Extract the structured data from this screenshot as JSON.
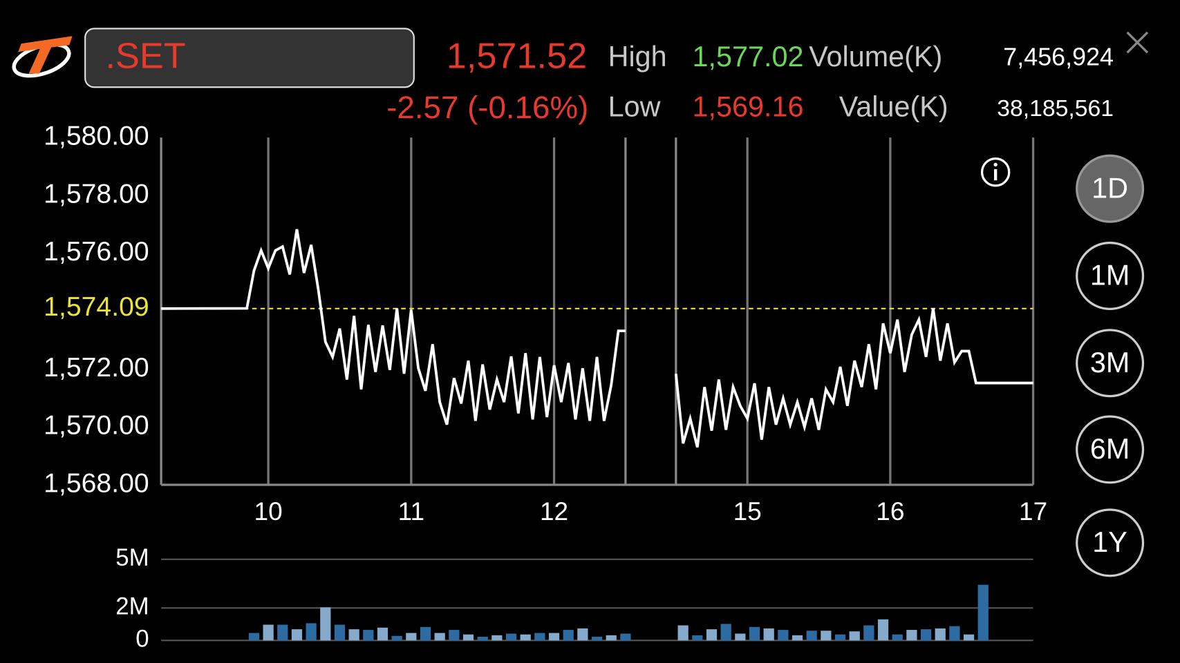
{
  "header": {
    "symbol": ".SET",
    "last": "1,571.52",
    "change": "-2.57 (-0.16%)",
    "high_label": "High",
    "high": "1,577.02",
    "low_label": "Low",
    "low": "1,569.16",
    "volume_label": "Volume(K)",
    "volume": "7,456,924",
    "value_label": "Value(K)",
    "value": "38,185,561"
  },
  "periods": [
    "1D",
    "1M",
    "3M",
    "6M",
    "1Y"
  ],
  "selected_period": "1D",
  "chart_data": [
    {
      "type": "line",
      "color": "#ffffff",
      "grid": "x",
      "xlim": [
        9.25,
        17
      ],
      "x_break": [
        12.5,
        14.5
      ],
      "xticks": [
        10,
        11,
        12,
        15,
        16,
        17
      ],
      "ylim": [
        1568,
        1580
      ],
      "yticks": [
        {
          "value": 1568,
          "label": "1,568.00"
        },
        {
          "value": 1570,
          "label": "1,570.00"
        },
        {
          "value": 1572,
          "label": "1,572.00"
        },
        {
          "value": 1574.09,
          "label": "1,574.09"
        },
        {
          "value": 1576,
          "label": "1,576.00"
        },
        {
          "value": 1578,
          "label": "1,578.00"
        },
        {
          "value": 1580,
          "label": "1,580.00"
        }
      ],
      "reference_line": {
        "value": 1574.09,
        "label": "1,574.09",
        "color": "#ece33a"
      },
      "x": [
        9.25,
        9.85,
        9.9,
        9.95,
        10,
        10.05,
        10.1,
        10.15,
        10.2,
        10.25,
        10.3,
        10.35,
        10.4,
        10.45,
        10.5,
        10.55,
        10.6,
        10.65,
        10.7,
        10.75,
        10.8,
        10.85,
        10.9,
        10.95,
        11,
        11.05,
        11.1,
        11.15,
        11.2,
        11.25,
        11.3,
        11.35,
        11.4,
        11.45,
        11.5,
        11.55,
        11.6,
        11.65,
        11.7,
        11.75,
        11.8,
        11.85,
        11.9,
        11.95,
        12,
        12.05,
        12.1,
        12.15,
        12.2,
        12.25,
        12.3,
        12.35,
        12.4,
        12.45,
        12.5,
        13.5,
        14.5,
        14.55,
        14.6,
        14.65,
        14.7,
        14.75,
        14.8,
        14.85,
        14.9,
        14.95,
        15,
        15.05,
        15.1,
        15.15,
        15.2,
        15.25,
        15.3,
        15.35,
        15.4,
        15.45,
        15.5,
        15.55,
        15.6,
        15.65,
        15.7,
        15.75,
        15.8,
        15.85,
        15.9,
        15.95,
        16,
        16.05,
        16.1,
        16.15,
        16.2,
        16.25,
        16.3,
        16.35,
        16.4,
        16.45,
        16.5,
        16.55,
        16.6,
        17
      ],
      "values": [
        1574.09,
        1574.1,
        1575.4,
        1576.1,
        1575.48,
        1576.1,
        1576.23,
        1575.27,
        1576.83,
        1575.32,
        1576.29,
        1574.75,
        1572.94,
        1572.42,
        1573.4,
        1571.64,
        1573.84,
        1571.3,
        1573.53,
        1571.9,
        1573.51,
        1571.97,
        1574.1,
        1571.84,
        1574.05,
        1572.03,
        1571.25,
        1572.86,
        1570.86,
        1570.08,
        1571.69,
        1570.81,
        1572.29,
        1570.21,
        1572.16,
        1570.6,
        1571.64,
        1570.86,
        1572.44,
        1570.47,
        1572.55,
        1570.26,
        1572.42,
        1570.34,
        1572.13,
        1570.86,
        1572.21,
        1570.26,
        1572.03,
        1570.21,
        1572.42,
        1570.21,
        1571.45,
        1573.32,
        1573.32,
        null,
        1571.84,
        1569.43,
        1570.29,
        1569.3,
        1571.38,
        1569.87,
        1571.64,
        1569.9,
        1571.38,
        1570.73,
        1570.29,
        1571.51,
        1569.56,
        1571.38,
        1570.08,
        1570.99,
        1570.08,
        1570.86,
        1570.0,
        1570.99,
        1569.9,
        1571.3,
        1570.86,
        1572.08,
        1570.73,
        1572.29,
        1571.38,
        1572.86,
        1571.3,
        1573.58,
        1572.55,
        1573.71,
        1571.9,
        1573.19,
        1573.71,
        1572.42,
        1574.1,
        1572.29,
        1573.58,
        1572.23,
        1572.62,
        1572.62,
        1571.52,
        1571.52
      ]
    },
    {
      "type": "bar",
      "colors": [
        "#2d6ca3",
        "#86aacb"
      ],
      "grid": "y",
      "xlim": [
        9.25,
        17
      ],
      "x_break": [
        12.5,
        14.5
      ],
      "ylim": [
        0,
        5000000
      ],
      "yticks": [
        0,
        {
          "value": 2000000,
          "label": "2M"
        },
        {
          "value": 5000000,
          "label": "5M"
        }
      ],
      "x": [
        9.9,
        10,
        10.1,
        10.2,
        10.3,
        10.4,
        10.5,
        10.6,
        10.7,
        10.8,
        10.9,
        11,
        11.1,
        11.2,
        11.3,
        11.4,
        11.5,
        11.6,
        11.7,
        11.8,
        11.9,
        12,
        12.1,
        12.2,
        12.3,
        12.4,
        12.5,
        14.55,
        14.65,
        14.75,
        14.85,
        14.95,
        15.05,
        15.15,
        15.25,
        15.35,
        15.45,
        15.55,
        15.65,
        15.75,
        15.85,
        15.95,
        16.05,
        16.15,
        16.25,
        16.35,
        16.45,
        16.55,
        16.65
      ],
      "values": [
        460000,
        970000,
        970000,
        690000,
        1060000,
        2040000,
        970000,
        690000,
        650000,
        790000,
        280000,
        460000,
        830000,
        460000,
        650000,
        370000,
        230000,
        320000,
        420000,
        370000,
        460000,
        460000,
        650000,
        740000,
        230000,
        320000,
        420000,
        930000,
        320000,
        690000,
        1020000,
        420000,
        830000,
        740000,
        650000,
        320000,
        600000,
        600000,
        370000,
        560000,
        930000,
        1300000,
        370000,
        650000,
        690000,
        740000,
        880000,
        370000,
        3430000
      ]
    }
  ]
}
